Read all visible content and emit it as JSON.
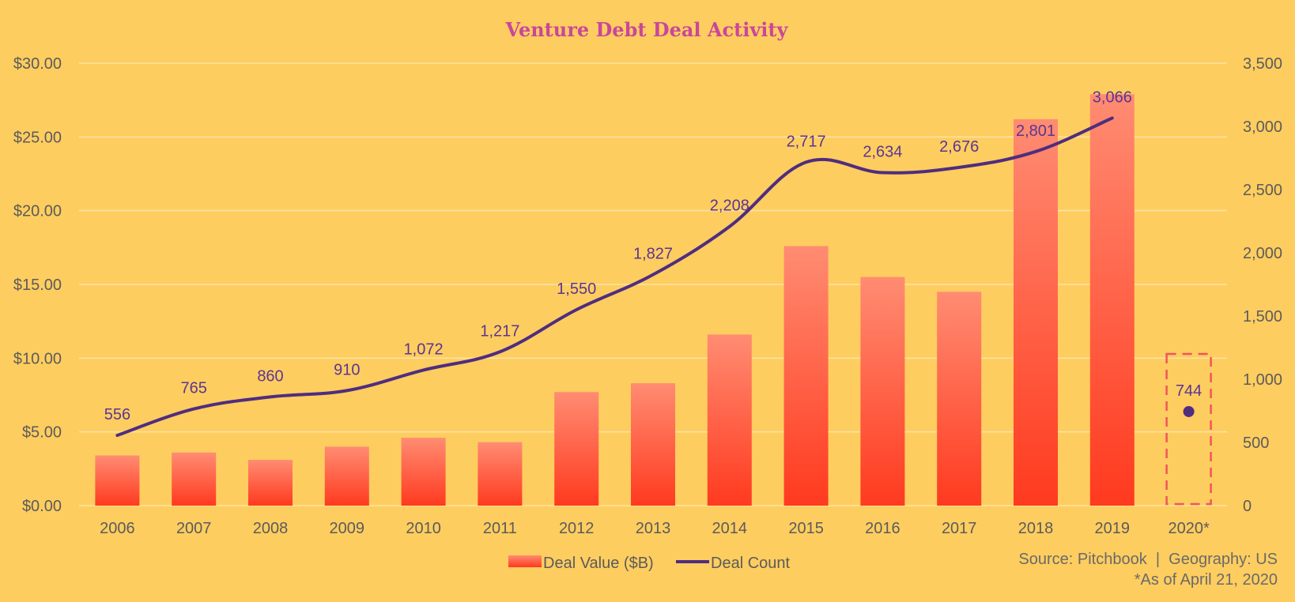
{
  "colors": {
    "background": "#FECD5F",
    "gridline": "#FBE3A6",
    "bar_top": "#FF8C72",
    "bar_bottom": "#FF3A1F",
    "line": "#4F2D7F",
    "data_label": "#5A3593",
    "title": "#C9479B",
    "axis_text": "#5B5B5B",
    "highlight_box": "#F2545B"
  },
  "chart_data": {
    "type": "bar+line",
    "title": "Venture Debt Deal Activity",
    "categories": [
      "2006",
      "2007",
      "2008",
      "2009",
      "2010",
      "2011",
      "2012",
      "2013",
      "2014",
      "2015",
      "2016",
      "2017",
      "2018",
      "2019",
      "2020*"
    ],
    "series": [
      {
        "name": "Deal Value ($B)",
        "type": "bar",
        "axis": "left",
        "values": [
          3.4,
          3.6,
          3.1,
          4.0,
          4.6,
          4.3,
          7.7,
          8.3,
          11.6,
          17.6,
          15.5,
          14.5,
          26.2,
          27.9,
          null
        ]
      },
      {
        "name": "Deal Count",
        "type": "line",
        "axis": "right",
        "values": [
          556,
          765,
          860,
          910,
          1072,
          1217,
          1550,
          1827,
          2208,
          2717,
          2634,
          2676,
          2801,
          3066,
          744
        ],
        "labels": [
          "556",
          "765",
          "860",
          "910",
          "1,072",
          "1,217",
          "1,550",
          "1,827",
          "2,208",
          "2,717",
          "2,634",
          "2,676",
          "2,801",
          "3,066",
          "744"
        ]
      }
    ],
    "left_axis": {
      "range": [
        0,
        30
      ],
      "ticks": [
        0,
        5,
        10,
        15,
        20,
        25,
        30
      ],
      "tick_labels": [
        "$0.00",
        "$5.00",
        "$10.00",
        "$15.00",
        "$20.00",
        "$25.00",
        "$30.00"
      ]
    },
    "right_axis": {
      "range": [
        0,
        3500
      ],
      "ticks": [
        0,
        500,
        1000,
        1500,
        2000,
        2500,
        3000,
        3500
      ],
      "tick_labels": [
        "0",
        "500",
        "1,000",
        "1,500",
        "2,000",
        "2,500",
        "3,000",
        "3,500"
      ]
    },
    "grid": true,
    "legend": {
      "position": "bottom-center",
      "items": [
        "Deal Value ($B)",
        "Deal Count"
      ]
    },
    "highlight_category": "2020*",
    "source_note": "Source: Pitchbook  |  Geography: US",
    "footnote": "*As of April 21, 2020"
  }
}
